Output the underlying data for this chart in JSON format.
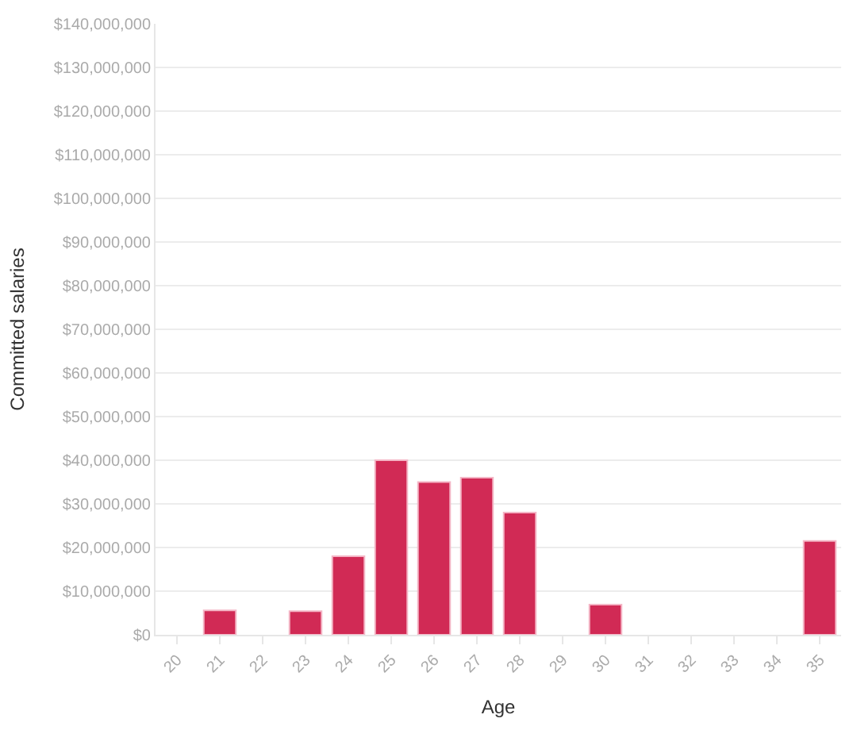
{
  "chart_data": {
    "type": "bar",
    "xlabel": "Age",
    "ylabel": "Committed salaries",
    "categories": [
      "20",
      "21",
      "22",
      "23",
      "24",
      "25",
      "26",
      "27",
      "28",
      "29",
      "30",
      "31",
      "32",
      "33",
      "34",
      "35"
    ],
    "series": [
      {
        "color": "#d12a55",
        "values": [
          null,
          5600000,
          null,
          5400000,
          18000000,
          40000000,
          35000000,
          36000000,
          28000000,
          null,
          6900000,
          null,
          null,
          null,
          null,
          21500000
        ]
      }
    ],
    "ylim": [
      0,
      140000000
    ],
    "yticks": [
      {
        "value": 0,
        "label": "$0"
      },
      {
        "value": 10000000,
        "label": "$10,000,000"
      },
      {
        "value": 20000000,
        "label": "$20,000,000"
      },
      {
        "value": 30000000,
        "label": "$30,000,000"
      },
      {
        "value": 40000000,
        "label": "$40,000,000"
      },
      {
        "value": 50000000,
        "label": "$50,000,000"
      },
      {
        "value": 60000000,
        "label": "$60,000,000"
      },
      {
        "value": 70000000,
        "label": "$70,000,000"
      },
      {
        "value": 80000000,
        "label": "$80,000,000"
      },
      {
        "value": 90000000,
        "label": "$90,000,000"
      },
      {
        "value": 100000000,
        "label": "$100,000,000"
      },
      {
        "value": 110000000,
        "label": "$110,000,000"
      },
      {
        "value": 120000000,
        "label": "$120,000,000"
      },
      {
        "value": 130000000,
        "label": "$130,000,000"
      },
      {
        "value": 140000000,
        "label": "$140,000,000"
      }
    ],
    "grid": "y",
    "legend": false
  }
}
